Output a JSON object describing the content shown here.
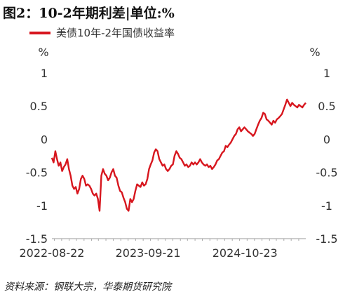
{
  "title": "图2：10-2年期利差|单位:%",
  "source": "资料来源：钢联大宗，华泰期货研究院",
  "chart_data": {
    "type": "line",
    "title": "图2：10-2年期利差|单位:%",
    "y_unit_left": "%",
    "y_unit_right": "%",
    "ylim": [
      -1.5,
      1
    ],
    "yticks": [
      1,
      0.5,
      0,
      -0.5,
      -1,
      -1.5
    ],
    "ytick_labels": [
      "1",
      "0.5",
      "0",
      "-0.5",
      "-1",
      "-1.5"
    ],
    "xticks": [
      "2022-08-22",
      "2023-09-21",
      "2024-10-23"
    ],
    "x_range": [
      "2022-08-22",
      "2025-06-30"
    ],
    "grid": false,
    "legend_position": "top-left",
    "series": [
      {
        "name": "美债10年-2年国债收益率",
        "color": "#d7161e",
        "points": [
          [
            "2022-08-22",
            -0.28
          ],
          [
            "2022-08-29",
            -0.35
          ],
          [
            "2022-09-05",
            -0.18
          ],
          [
            "2022-09-12",
            -0.3
          ],
          [
            "2022-09-19",
            -0.4
          ],
          [
            "2022-09-26",
            -0.35
          ],
          [
            "2022-10-03",
            -0.48
          ],
          [
            "2022-10-10",
            -0.42
          ],
          [
            "2022-10-17",
            -0.38
          ],
          [
            "2022-10-24",
            -0.3
          ],
          [
            "2022-10-31",
            -0.45
          ],
          [
            "2022-11-07",
            -0.55
          ],
          [
            "2022-11-14",
            -0.7
          ],
          [
            "2022-11-21",
            -0.75
          ],
          [
            "2022-11-28",
            -0.72
          ],
          [
            "2022-12-05",
            -0.82
          ],
          [
            "2022-12-12",
            -0.75
          ],
          [
            "2022-12-19",
            -0.6
          ],
          [
            "2022-12-26",
            -0.55
          ],
          [
            "2023-01-02",
            -0.6
          ],
          [
            "2023-01-09",
            -0.7
          ],
          [
            "2023-01-16",
            -0.68
          ],
          [
            "2023-01-23",
            -0.7
          ],
          [
            "2023-01-30",
            -0.75
          ],
          [
            "2023-02-06",
            -0.82
          ],
          [
            "2023-02-13",
            -0.85
          ],
          [
            "2023-02-20",
            -0.82
          ],
          [
            "2023-02-27",
            -0.9
          ],
          [
            "2023-03-06",
            -1.08
          ],
          [
            "2023-03-13",
            -0.55
          ],
          [
            "2023-03-20",
            -0.45
          ],
          [
            "2023-03-27",
            -0.52
          ],
          [
            "2023-04-03",
            -0.55
          ],
          [
            "2023-04-10",
            -0.62
          ],
          [
            "2023-04-17",
            -0.58
          ],
          [
            "2023-04-24",
            -0.5
          ],
          [
            "2023-05-01",
            -0.45
          ],
          [
            "2023-05-08",
            -0.55
          ],
          [
            "2023-05-15",
            -0.58
          ],
          [
            "2023-05-22",
            -0.7
          ],
          [
            "2023-05-29",
            -0.78
          ],
          [
            "2023-06-05",
            -0.8
          ],
          [
            "2023-06-12",
            -0.88
          ],
          [
            "2023-06-19",
            -0.95
          ],
          [
            "2023-06-26",
            -1.05
          ],
          [
            "2023-07-03",
            -1.08
          ],
          [
            "2023-07-10",
            -0.9
          ],
          [
            "2023-07-17",
            -0.95
          ],
          [
            "2023-07-24",
            -0.9
          ],
          [
            "2023-07-31",
            -0.78
          ],
          [
            "2023-08-07",
            -0.68
          ],
          [
            "2023-08-14",
            -0.7
          ],
          [
            "2023-08-21",
            -0.72
          ],
          [
            "2023-08-28",
            -0.65
          ],
          [
            "2023-09-04",
            -0.7
          ],
          [
            "2023-09-11",
            -0.68
          ],
          [
            "2023-09-18",
            -0.6
          ],
          [
            "2023-09-25",
            -0.45
          ],
          [
            "2023-10-02",
            -0.38
          ],
          [
            "2023-10-09",
            -0.32
          ],
          [
            "2023-10-16",
            -0.2
          ],
          [
            "2023-10-23",
            -0.15
          ],
          [
            "2023-10-30",
            -0.18
          ],
          [
            "2023-11-06",
            -0.3
          ],
          [
            "2023-11-13",
            -0.35
          ],
          [
            "2023-11-20",
            -0.4
          ],
          [
            "2023-11-27",
            -0.38
          ],
          [
            "2023-12-04",
            -0.45
          ],
          [
            "2023-12-11",
            -0.48
          ],
          [
            "2023-12-18",
            -0.45
          ],
          [
            "2023-12-25",
            -0.4
          ],
          [
            "2024-01-01",
            -0.38
          ],
          [
            "2024-01-08",
            -0.25
          ],
          [
            "2024-01-15",
            -0.18
          ],
          [
            "2024-01-22",
            -0.22
          ],
          [
            "2024-01-29",
            -0.28
          ],
          [
            "2024-02-05",
            -0.3
          ],
          [
            "2024-02-12",
            -0.35
          ],
          [
            "2024-02-19",
            -0.4
          ],
          [
            "2024-02-26",
            -0.38
          ],
          [
            "2024-03-04",
            -0.42
          ],
          [
            "2024-03-11",
            -0.4
          ],
          [
            "2024-03-18",
            -0.35
          ],
          [
            "2024-03-25",
            -0.38
          ],
          [
            "2024-04-01",
            -0.35
          ],
          [
            "2024-04-08",
            -0.38
          ],
          [
            "2024-04-15",
            -0.35
          ],
          [
            "2024-04-22",
            -0.3
          ],
          [
            "2024-04-29",
            -0.35
          ],
          [
            "2024-05-06",
            -0.38
          ],
          [
            "2024-05-13",
            -0.4
          ],
          [
            "2024-05-20",
            -0.38
          ],
          [
            "2024-05-27",
            -0.42
          ],
          [
            "2024-06-03",
            -0.4
          ],
          [
            "2024-06-10",
            -0.45
          ],
          [
            "2024-06-17",
            -0.42
          ],
          [
            "2024-06-24",
            -0.38
          ],
          [
            "2024-07-01",
            -0.32
          ],
          [
            "2024-07-08",
            -0.3
          ],
          [
            "2024-07-15",
            -0.25
          ],
          [
            "2024-07-22",
            -0.2
          ],
          [
            "2024-07-29",
            -0.18
          ],
          [
            "2024-08-05",
            -0.1
          ],
          [
            "2024-08-12",
            -0.12
          ],
          [
            "2024-08-19",
            -0.08
          ],
          [
            "2024-08-26",
            -0.05
          ],
          [
            "2024-09-02",
            0.0
          ],
          [
            "2024-09-09",
            0.05
          ],
          [
            "2024-09-16",
            0.08
          ],
          [
            "2024-09-23",
            0.15
          ],
          [
            "2024-09-30",
            0.18
          ],
          [
            "2024-10-07",
            0.12
          ],
          [
            "2024-10-14",
            0.15
          ],
          [
            "2024-10-21",
            0.18
          ],
          [
            "2024-10-28",
            0.15
          ],
          [
            "2024-11-04",
            0.12
          ],
          [
            "2024-11-11",
            0.1
          ],
          [
            "2024-11-18",
            0.08
          ],
          [
            "2024-11-25",
            0.05
          ],
          [
            "2024-12-02",
            0.08
          ],
          [
            "2024-12-09",
            0.15
          ],
          [
            "2024-12-16",
            0.22
          ],
          [
            "2024-12-23",
            0.28
          ],
          [
            "2024-12-30",
            0.32
          ],
          [
            "2025-01-06",
            0.4
          ],
          [
            "2025-01-13",
            0.38
          ],
          [
            "2025-01-20",
            0.3
          ],
          [
            "2025-01-27",
            0.28
          ],
          [
            "2025-02-03",
            0.25
          ],
          [
            "2025-02-10",
            0.22
          ],
          [
            "2025-02-17",
            0.28
          ],
          [
            "2025-02-24",
            0.25
          ],
          [
            "2025-03-03",
            0.3
          ],
          [
            "2025-03-10",
            0.32
          ],
          [
            "2025-03-17",
            0.35
          ],
          [
            "2025-03-24",
            0.38
          ],
          [
            "2025-03-31",
            0.45
          ],
          [
            "2025-04-07",
            0.52
          ],
          [
            "2025-04-14",
            0.6
          ],
          [
            "2025-04-21",
            0.55
          ],
          [
            "2025-04-28",
            0.5
          ],
          [
            "2025-05-05",
            0.55
          ],
          [
            "2025-05-12",
            0.52
          ],
          [
            "2025-05-19",
            0.5
          ],
          [
            "2025-05-26",
            0.48
          ],
          [
            "2025-06-02",
            0.52
          ],
          [
            "2025-06-09",
            0.5
          ],
          [
            "2025-06-16",
            0.48
          ],
          [
            "2025-06-23",
            0.52
          ],
          [
            "2025-06-30",
            0.55
          ]
        ]
      }
    ]
  }
}
